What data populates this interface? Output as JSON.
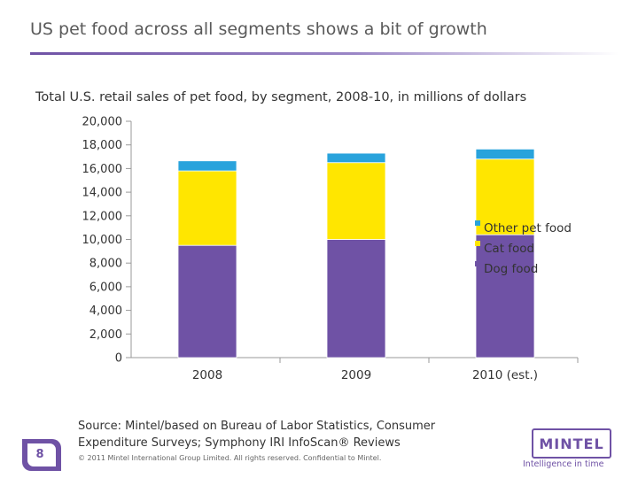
{
  "slide": {
    "title": "US pet food across all segments shows a bit of growth",
    "subtitle": "Total U.S. retail sales of pet food, by segment, 2008-10, in millions of dollars",
    "source": "Source: Mintel/based on Bureau of Labor Statistics, Consumer Expenditure Surveys; Symphony IRI InfoScan® Reviews",
    "copyright": "© 2011 Mintel International Group Limited. All rights reserved. Confidential to Mintel.",
    "page_number": "8",
    "logo_text": "MINTEL",
    "logo_tagline": "Intelligence in time"
  },
  "chart_data": {
    "type": "bar",
    "stacked": true,
    "categories": [
      "2008",
      "2009",
      "2010 (est.)"
    ],
    "series": [
      {
        "name": "Dog food",
        "color": "#6f52a5",
        "values": [
          9500,
          10000,
          10400
        ]
      },
      {
        "name": "Cat food",
        "color": "#ffe600",
        "values": [
          6300,
          6500,
          6400
        ]
      },
      {
        "name": "Other pet food",
        "color": "#29a3dc",
        "values": [
          850,
          800,
          850
        ]
      }
    ],
    "ylim": [
      0,
      20000
    ],
    "yticks": [
      "0",
      "2,000",
      "4,000",
      "6,000",
      "8,000",
      "10,000",
      "12,000",
      "14,000",
      "16,000",
      "18,000",
      "20,000"
    ],
    "legend_position": "right",
    "grid": false
  }
}
